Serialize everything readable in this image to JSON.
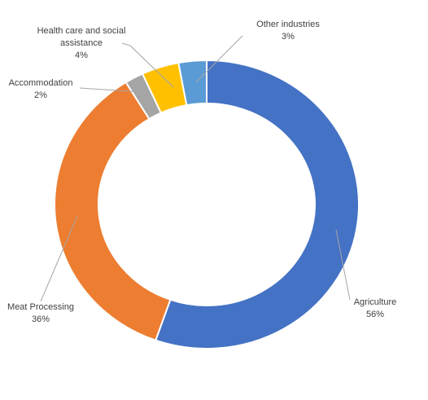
{
  "chart_data": {
    "type": "donut",
    "categories": [
      "Agriculture",
      "Meat Processing",
      "Accommodation",
      "Health care and social assistance",
      "Other industries"
    ],
    "values": [
      56,
      36,
      2,
      4,
      3
    ],
    "value_labels": [
      "56%",
      "36%",
      "2%",
      "4%",
      "3%"
    ],
    "colors": [
      "#4472c4",
      "#ed7d31",
      "#a5a5a5",
      "#ffc000",
      "#5b9bd5"
    ]
  }
}
